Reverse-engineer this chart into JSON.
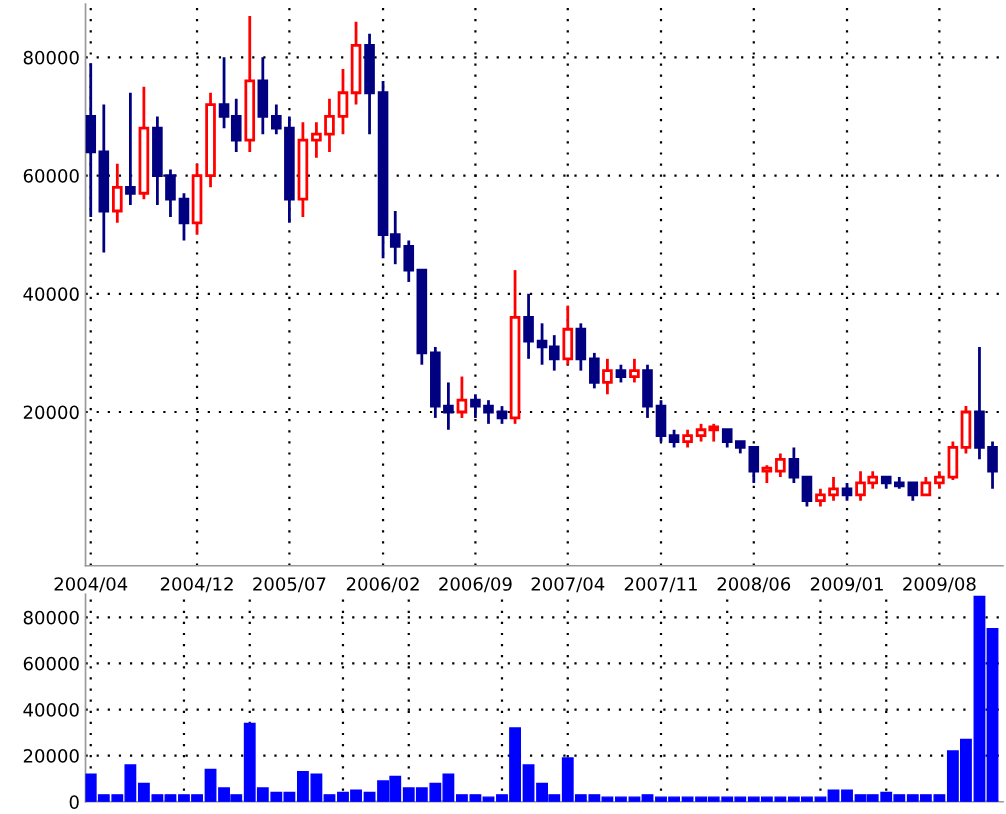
{
  "chart_data": [
    {
      "type": "candlestick",
      "x": [
        "2004-04",
        "2004-05",
        "2004-06",
        "2004-07",
        "2004-08",
        "2004-09",
        "2004-10",
        "2004-11",
        "2004-12",
        "2005-01",
        "2005-02",
        "2005-03",
        "2005-04",
        "2005-05",
        "2005-06",
        "2005-07",
        "2005-08",
        "2005-09",
        "2005-10",
        "2005-11",
        "2005-12",
        "2006-01",
        "2006-02",
        "2006-03",
        "2006-04",
        "2006-05",
        "2006-06",
        "2006-07",
        "2006-08",
        "2006-09",
        "2006-10",
        "2006-11",
        "2006-12",
        "2007-01",
        "2007-02",
        "2007-03",
        "2007-04",
        "2007-05",
        "2007-06",
        "2007-07",
        "2007-08",
        "2007-09",
        "2007-10",
        "2007-11",
        "2007-12",
        "2008-01",
        "2008-02",
        "2008-03",
        "2008-04",
        "2008-05",
        "2008-06",
        "2008-07",
        "2008-08",
        "2008-09",
        "2008-10",
        "2008-11",
        "2008-12",
        "2009-01",
        "2009-02",
        "2009-03",
        "2009-04",
        "2009-05",
        "2009-06",
        "2009-07",
        "2009-08",
        "2009-09",
        "2009-10",
        "2009-11",
        "2009-12"
      ],
      "ohlc": [
        [
          70000,
          79000,
          53000,
          64000
        ],
        [
          64000,
          72000,
          47000,
          54000
        ],
        [
          54000,
          62000,
          52000,
          58000
        ],
        [
          58000,
          74000,
          55000,
          57000
        ],
        [
          57000,
          75000,
          56000,
          68000
        ],
        [
          68000,
          70000,
          55000,
          60000
        ],
        [
          60000,
          61000,
          53000,
          56000
        ],
        [
          56000,
          57000,
          49000,
          52000
        ],
        [
          52000,
          62000,
          50000,
          60000
        ],
        [
          60000,
          74000,
          58000,
          72000
        ],
        [
          72000,
          80000,
          68000,
          70000
        ],
        [
          70000,
          73000,
          64000,
          66000
        ],
        [
          66000,
          87000,
          64000,
          76000
        ],
        [
          76000,
          80000,
          67000,
          70000
        ],
        [
          70000,
          72000,
          67000,
          68000
        ],
        [
          68000,
          70000,
          52000,
          56000
        ],
        [
          56000,
          69000,
          53000,
          66000
        ],
        [
          66000,
          69000,
          63000,
          67000
        ],
        [
          67000,
          73000,
          64000,
          70000
        ],
        [
          70000,
          78000,
          67000,
          74000
        ],
        [
          74000,
          86000,
          72000,
          82000
        ],
        [
          82000,
          84000,
          67000,
          74000
        ],
        [
          74000,
          76000,
          46000,
          50000
        ],
        [
          50000,
          54000,
          45000,
          48000
        ],
        [
          48000,
          49000,
          42000,
          44000
        ],
        [
          44000,
          44000,
          28000,
          30000
        ],
        [
          30000,
          31000,
          19000,
          21000
        ],
        [
          21000,
          25000,
          17000,
          20000
        ],
        [
          20000,
          26000,
          19000,
          22000
        ],
        [
          22000,
          23000,
          19000,
          21000
        ],
        [
          21000,
          22000,
          18000,
          20000
        ],
        [
          20000,
          21000,
          18000,
          19000
        ],
        [
          19000,
          44000,
          18000,
          36000
        ],
        [
          36000,
          40000,
          29000,
          32000
        ],
        [
          32000,
          35000,
          28000,
          31000
        ],
        [
          31000,
          33000,
          27000,
          29000
        ],
        [
          29000,
          38000,
          28000,
          34000
        ],
        [
          34000,
          35000,
          27000,
          29000
        ],
        [
          29000,
          30000,
          24000,
          25000
        ],
        [
          25000,
          29000,
          23000,
          27000
        ],
        [
          27000,
          28000,
          25000,
          26000
        ],
        [
          26000,
          29000,
          25000,
          27000
        ],
        [
          27000,
          28000,
          19000,
          21000
        ],
        [
          21000,
          22000,
          15000,
          16000
        ],
        [
          16000,
          17000,
          14000,
          15000
        ],
        [
          15000,
          17000,
          14000,
          16000
        ],
        [
          16000,
          18000,
          15000,
          17000
        ],
        [
          17000,
          18000,
          15000,
          17500
        ],
        [
          17000,
          17000,
          14000,
          15000
        ],
        [
          15000,
          15000,
          13000,
          14000
        ],
        [
          14000,
          14000,
          8000,
          10000
        ],
        [
          10000,
          11000,
          8000,
          10500
        ],
        [
          10000,
          13000,
          9000,
          12000
        ],
        [
          12000,
          14000,
          8000,
          9000
        ],
        [
          9000,
          9000,
          4000,
          5000
        ],
        [
          5000,
          7000,
          4000,
          6000
        ],
        [
          6000,
          9000,
          5000,
          7000
        ],
        [
          7000,
          8000,
          5000,
          6000
        ],
        [
          6000,
          10000,
          5000,
          8000
        ],
        [
          8000,
          10000,
          7000,
          9000
        ],
        [
          9000,
          9000,
          7000,
          8000
        ],
        [
          8000,
          9000,
          7000,
          7500
        ],
        [
          8000,
          8000,
          5000,
          6000
        ],
        [
          6000,
          9000,
          6000,
          8000
        ],
        [
          8000,
          10000,
          7000,
          9000
        ],
        [
          9000,
          15000,
          8500,
          14000
        ],
        [
          14000,
          21000,
          13000,
          20000
        ],
        [
          20000,
          31000,
          12000,
          14000
        ],
        [
          14000,
          15000,
          7000,
          10000
        ]
      ],
      "colors": [
        "#000080",
        "#000080",
        "#ff0000",
        "#000080",
        "#ff0000",
        "#000080",
        "#000080",
        "#000080",
        "#ff0000",
        "#ff0000",
        "#000080",
        "#000080",
        "#ff0000",
        "#000080",
        "#000080",
        "#000080",
        "#ff0000",
        "#ff0000",
        "#ff0000",
        "#ff0000",
        "#ff0000",
        "#000080",
        "#000080",
        "#000080",
        "#000080",
        "#000080",
        "#000080",
        "#000080",
        "#ff0000",
        "#000080",
        "#000080",
        "#000080",
        "#ff0000",
        "#000080",
        "#000080",
        "#000080",
        "#ff0000",
        "#000080",
        "#000080",
        "#ff0000",
        "#000080",
        "#ff0000",
        "#000080",
        "#000080",
        "#000080",
        "#ff0000",
        "#ff0000",
        "#ff0000",
        "#000080",
        "#000080",
        "#000080",
        "#ff0000",
        "#ff0000",
        "#000080",
        "#000080",
        "#ff0000",
        "#ff0000",
        "#000080",
        "#ff0000",
        "#ff0000",
        "#000080",
        "#000080",
        "#000080",
        "#ff0000",
        "#ff0000",
        "#ff0000",
        "#ff0000",
        "#000080",
        "#000080"
      ],
      "xlim": [
        "2004-03-20",
        "2009-12-25"
      ],
      "xticks": [
        {
          "value": "2004-04",
          "label": "2004/04"
        },
        {
          "value": "2004-12",
          "label": "2004/12"
        },
        {
          "value": "2005-07",
          "label": "2005/07"
        },
        {
          "value": "2006-02",
          "label": "2006/02"
        },
        {
          "value": "2006-09",
          "label": "2006/09"
        },
        {
          "value": "2007-04",
          "label": "2007/04"
        },
        {
          "value": "2007-11",
          "label": "2007/11"
        },
        {
          "value": "2008-06",
          "label": "2008/06"
        },
        {
          "value": "2009-01",
          "label": "2009/01"
        },
        {
          "value": "2009-08",
          "label": "2009/08"
        }
      ],
      "ylim": [
        -6000,
        89000
      ],
      "yticks": [
        20000,
        40000,
        60000,
        80000
      ],
      "grid": true
    },
    {
      "type": "bar",
      "x": [
        "2004-04",
        "2004-05",
        "2004-06",
        "2004-07",
        "2004-08",
        "2004-09",
        "2004-10",
        "2004-11",
        "2004-12",
        "2005-01",
        "2005-02",
        "2005-03",
        "2005-04",
        "2005-05",
        "2005-06",
        "2005-07",
        "2005-08",
        "2005-09",
        "2005-10",
        "2005-11",
        "2005-12",
        "2006-01",
        "2006-02",
        "2006-03",
        "2006-04",
        "2006-05",
        "2006-06",
        "2006-07",
        "2006-08",
        "2006-09",
        "2006-10",
        "2006-11",
        "2006-12",
        "2007-01",
        "2007-02",
        "2007-03",
        "2007-04",
        "2007-05",
        "2007-06",
        "2007-07",
        "2007-08",
        "2007-09",
        "2007-10",
        "2007-11",
        "2007-12",
        "2008-01",
        "2008-02",
        "2008-03",
        "2008-04",
        "2008-05",
        "2008-06",
        "2008-07",
        "2008-08",
        "2008-09",
        "2008-10",
        "2008-11",
        "2008-12",
        "2009-01",
        "2009-02",
        "2009-03",
        "2009-04",
        "2009-05",
        "2009-06",
        "2009-07",
        "2009-08",
        "2009-09",
        "2009-10",
        "2009-11",
        "2009-12"
      ],
      "values": [
        12000,
        3000,
        3000,
        16000,
        8000,
        3000,
        3000,
        3000,
        3000,
        14000,
        6000,
        3000,
        34000,
        6000,
        4000,
        4000,
        13000,
        12000,
        3000,
        4000,
        5000,
        4000,
        9000,
        11000,
        6000,
        6000,
        8000,
        12000,
        3000,
        3000,
        2000,
        3000,
        32000,
        16000,
        8000,
        3000,
        19000,
        3000,
        3000,
        2000,
        2000,
        2000,
        3000,
        2000,
        2000,
        2000,
        2000,
        2000,
        2000,
        2000,
        2000,
        2000,
        2000,
        2000,
        2000,
        2000,
        5000,
        5000,
        3000,
        3000,
        4000,
        3000,
        3000,
        3000,
        3000,
        22000,
        27000,
        89000,
        75000
      ],
      "color": "#0000ff",
      "xlim": [
        "2004-03-20",
        "2009-12-25"
      ],
      "ylim": [
        0,
        90000
      ],
      "yticks": [
        0,
        20000,
        40000,
        60000,
        80000
      ],
      "tick_labels": "y",
      "grid": true
    }
  ]
}
